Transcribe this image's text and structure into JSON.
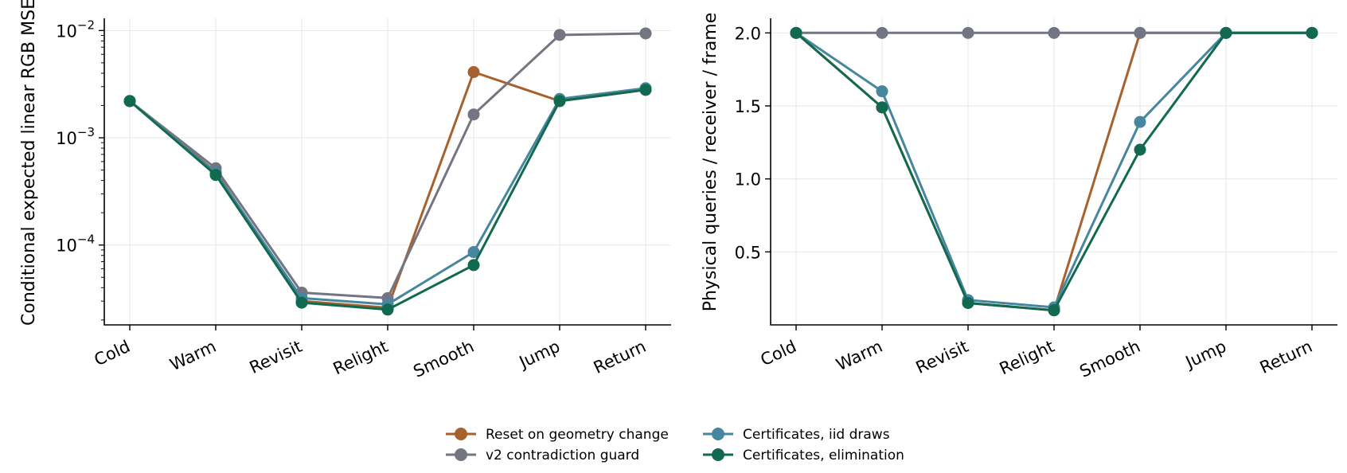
{
  "chart_data": [
    {
      "type": "line",
      "title": "",
      "xlabel": "",
      "ylabel": "Conditional expected linear RGB MSE",
      "yscale": "log",
      "ylim": [
        1.8e-05,
        0.013
      ],
      "yticks": [
        {
          "value": 0.0001,
          "base": "10",
          "exp": "−4"
        },
        {
          "value": 0.001,
          "base": "10",
          "exp": "−3"
        },
        {
          "value": 0.01,
          "base": "10",
          "exp": "−2"
        }
      ],
      "grid": true,
      "categories": [
        "Cold",
        "Warm",
        "Revisit",
        "Relight",
        "Smooth",
        "Jump",
        "Return"
      ],
      "series": [
        {
          "name": "Reset on geometry change",
          "color": "#a6612d",
          "values": [
            0.0022,
            0.00048,
            3e-05,
            2.6e-05,
            0.0041,
            0.0022,
            0.0028
          ]
        },
        {
          "name": "v2 contradiction guard",
          "color": "#737582",
          "values": [
            0.0022,
            0.00052,
            3.6e-05,
            3.2e-05,
            0.00165,
            0.0091,
            0.0094
          ]
        },
        {
          "name": "Certificates, iid draws",
          "color": "#46869e",
          "values": [
            0.0022,
            0.00047,
            3.2e-05,
            2.8e-05,
            8.6e-05,
            0.0023,
            0.0029
          ]
        },
        {
          "name": "Certificates, elimination",
          "color": "#116a50",
          "values": [
            0.0022,
            0.00045,
            2.9e-05,
            2.5e-05,
            6.5e-05,
            0.0022,
            0.0028
          ]
        }
      ]
    },
    {
      "type": "line",
      "title": "",
      "xlabel": "",
      "ylabel": "Physical queries / receiver / frame",
      "yscale": "linear",
      "ylim": [
        0.0,
        2.1
      ],
      "yticks": [
        {
          "value": 0.5,
          "label": "0.5"
        },
        {
          "value": 1.0,
          "label": "1.0"
        },
        {
          "value": 1.5,
          "label": "1.5"
        },
        {
          "value": 2.0,
          "label": "2.0"
        }
      ],
      "grid": true,
      "categories": [
        "Cold",
        "Warm",
        "Revisit",
        "Relight",
        "Smooth",
        "Jump",
        "Return"
      ],
      "series": [
        {
          "name": "Reset on geometry change",
          "color": "#a6612d",
          "values": [
            2.0,
            1.49,
            0.15,
            0.1,
            2.0,
            2.0,
            2.0
          ]
        },
        {
          "name": "v2 contradiction guard",
          "color": "#737582",
          "values": [
            2.0,
            2.0,
            2.0,
            2.0,
            2.0,
            2.0,
            2.0
          ]
        },
        {
          "name": "Certificates, iid draws",
          "color": "#46869e",
          "values": [
            2.0,
            1.6,
            0.17,
            0.12,
            1.39,
            2.0,
            2.0
          ]
        },
        {
          "name": "Certificates, elimination",
          "color": "#116a50",
          "values": [
            2.0,
            1.49,
            0.15,
            0.1,
            1.2,
            2.0,
            2.0
          ]
        }
      ]
    }
  ],
  "legend": {
    "placement": "bottom-center",
    "items": [
      {
        "label": "Reset on geometry change",
        "color": "#a6612d"
      },
      {
        "label": "v2 contradiction guard",
        "color": "#737582"
      },
      {
        "label": "Certificates, iid draws",
        "color": "#46869e"
      },
      {
        "label": "Certificates, elimination",
        "color": "#116a50"
      }
    ]
  }
}
